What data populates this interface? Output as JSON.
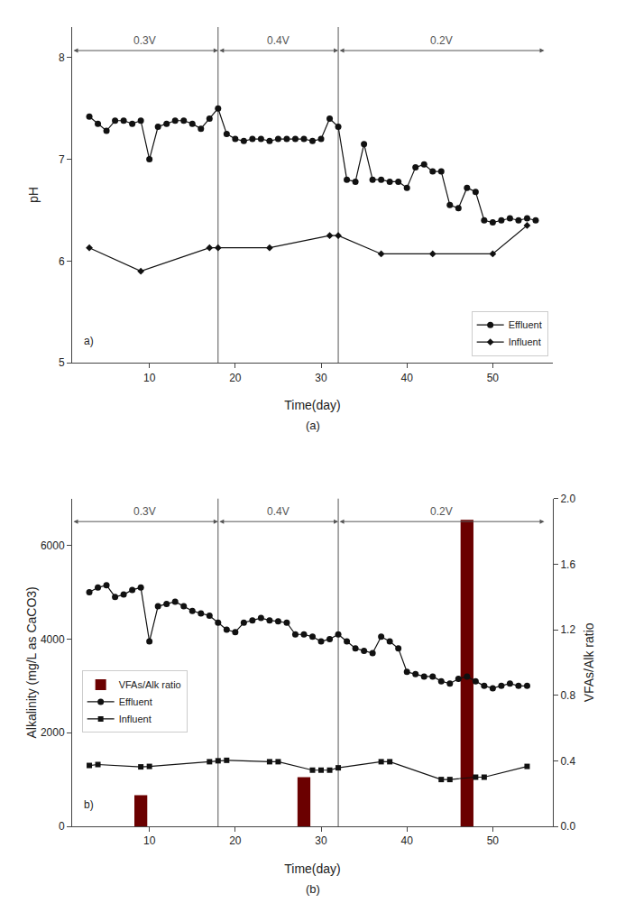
{
  "chart_data": [
    {
      "type": "line",
      "caption": "(a)",
      "panel_label": "a)",
      "x_label": "Time(day)",
      "y_label": "pH",
      "series": [
        {
          "name": "Effluent",
          "color": "#111111",
          "marker": "circle",
          "x": [
            3,
            4,
            5,
            6,
            7,
            8,
            9,
            10,
            11,
            12,
            13,
            14,
            15,
            16,
            17,
            18,
            19,
            20,
            21,
            22,
            23,
            24,
            25,
            26,
            27,
            28,
            29,
            30,
            31,
            32,
            33,
            34,
            35,
            36,
            37,
            38,
            39,
            40,
            41,
            42,
            43,
            44,
            45,
            46,
            47,
            48,
            49,
            50,
            51,
            52,
            53,
            54,
            55
          ],
          "values": [
            7.42,
            7.35,
            7.28,
            7.38,
            7.38,
            7.35,
            7.38,
            7.0,
            7.32,
            7.35,
            7.38,
            7.38,
            7.35,
            7.3,
            7.4,
            7.5,
            7.25,
            7.2,
            7.18,
            7.2,
            7.2,
            7.18,
            7.2,
            7.2,
            7.2,
            7.2,
            7.18,
            7.2,
            7.4,
            7.32,
            6.8,
            6.78,
            7.15,
            6.8,
            6.8,
            6.78,
            6.78,
            6.72,
            6.92,
            6.95,
            6.88,
            6.88,
            6.55,
            6.52,
            6.72,
            6.68,
            6.4,
            6.38,
            6.4,
            6.42,
            6.4,
            6.42,
            6.4
          ]
        },
        {
          "name": "Influent",
          "color": "#111111",
          "marker": "diamond",
          "x": [
            3,
            9,
            17,
            18,
            24,
            31,
            32,
            37,
            43,
            50,
            54
          ],
          "values": [
            6.13,
            5.9,
            6.13,
            6.13,
            6.13,
            6.25,
            6.25,
            6.07,
            6.07,
            6.07,
            6.35
          ]
        }
      ],
      "vlines": [
        18,
        32
      ],
      "regions": [
        {
          "label": "0.3V",
          "x_start": 1,
          "x_end": 18
        },
        {
          "label": "0.4V",
          "x_start": 18,
          "x_end": 32
        },
        {
          "label": "0.2V",
          "x_start": 32,
          "x_end": 56
        }
      ],
      "xlim": [
        1,
        57
      ],
      "xticks": [
        10,
        20,
        30,
        40,
        50
      ],
      "ylim": [
        5,
        8.3
      ],
      "yticks": [
        5,
        6,
        7,
        8
      ],
      "grid": false,
      "legend": "lower right"
    },
    {
      "type": "line",
      "caption": "(b)",
      "panel_label": "b)",
      "x_label": "Time(day)",
      "y_label": "Alkalinity (mg/L as CaCO3)",
      "y2_label": "VFAs/Alk ratio",
      "series": [
        {
          "name": "VFAs/Alk ratio",
          "type": "bar",
          "axis": "y2",
          "color": "#6B0000",
          "x": [
            9,
            28,
            47
          ],
          "values": [
            0.19,
            0.3,
            1.87
          ]
        },
        {
          "name": "Effluent",
          "color": "#111111",
          "marker": "circle",
          "x": [
            3,
            4,
            5,
            6,
            7,
            8,
            9,
            10,
            11,
            12,
            13,
            14,
            15,
            16,
            17,
            18,
            19,
            20,
            21,
            22,
            23,
            24,
            25,
            26,
            27,
            28,
            29,
            30,
            31,
            32,
            33,
            34,
            35,
            36,
            37,
            38,
            39,
            40,
            41,
            42,
            43,
            44,
            45,
            46,
            47,
            48,
            49,
            50,
            51,
            52,
            53,
            54
          ],
          "values": [
            5000,
            5100,
            5150,
            4900,
            4950,
            5050,
            5100,
            3950,
            4700,
            4750,
            4800,
            4700,
            4600,
            4550,
            4500,
            4350,
            4200,
            4150,
            4350,
            4400,
            4450,
            4400,
            4380,
            4350,
            4100,
            4100,
            4050,
            3950,
            4000,
            4100,
            3950,
            3800,
            3750,
            3700,
            4050,
            3950,
            3800,
            3300,
            3250,
            3200,
            3200,
            3100,
            3050,
            3150,
            3200,
            3100,
            3000,
            2950,
            3000,
            3050,
            3000,
            3000
          ]
        },
        {
          "name": "Influent",
          "color": "#111111",
          "marker": "square",
          "x": [
            3,
            4,
            9,
            10,
            17,
            18,
            19,
            24,
            25,
            29,
            30,
            31,
            32,
            37,
            38,
            44,
            45,
            48,
            49,
            54
          ],
          "values": [
            1300,
            1320,
            1270,
            1280,
            1380,
            1400,
            1410,
            1380,
            1380,
            1200,
            1200,
            1200,
            1250,
            1380,
            1380,
            1000,
            1000,
            1050,
            1050,
            1280
          ]
        }
      ],
      "vlines": [
        18,
        32
      ],
      "regions": [
        {
          "label": "0.3V",
          "x_start": 1,
          "x_end": 18
        },
        {
          "label": "0.4V",
          "x_start": 18,
          "x_end": 32
        },
        {
          "label": "0.2V",
          "x_start": 32,
          "x_end": 56
        }
      ],
      "xlim": [
        1,
        57
      ],
      "xticks": [
        10,
        20,
        30,
        40,
        50
      ],
      "ylim": [
        0,
        7000
      ],
      "yticks": [
        0,
        2000,
        4000,
        6000
      ],
      "y2lim": [
        0,
        2.0
      ],
      "y2ticks": [
        {
          "value": 0,
          "label": "0.0"
        },
        0.4,
        0.8,
        1.2,
        1.6,
        {
          "value": 2.0,
          "label": "2.0"
        }
      ],
      "grid": false,
      "legend": "center left"
    }
  ]
}
